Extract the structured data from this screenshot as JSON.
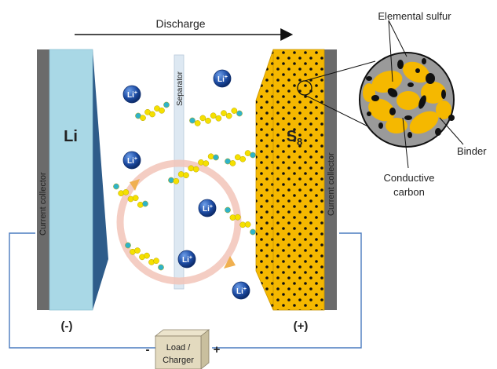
{
  "top_arrow_label": "Discharge",
  "anode": {
    "label": "Li",
    "collector_label": "Current collector",
    "polarity": "(-)",
    "fill_color": "#a9d8e6",
    "edge_color": "#2e5c8a"
  },
  "separator_label": "Separator",
  "cathode": {
    "label_main": "S",
    "label_sub": "8",
    "collector_label": "Current collector",
    "polarity": "(+)",
    "fill_color": "#f5b800"
  },
  "ion_label": "Li",
  "ion_superscript": "+",
  "ion_color": "#1f4fa8",
  "polysulfide_color": "#f5e000",
  "polysulfide_end_color": "#2fb3c9",
  "shuttle_ring_color": "#f2c4b8",
  "shuttle_arrow_color": "#f0b050",
  "zoom_callouts": {
    "elemental_sulfur": "Elemental sulfur",
    "binder": "Binder",
    "conductive_carbon_line1": "Conductive",
    "conductive_carbon_line2": "carbon"
  },
  "load_box": {
    "line1": "Load /",
    "line2": "Charger",
    "minus": "-",
    "plus": "+"
  }
}
